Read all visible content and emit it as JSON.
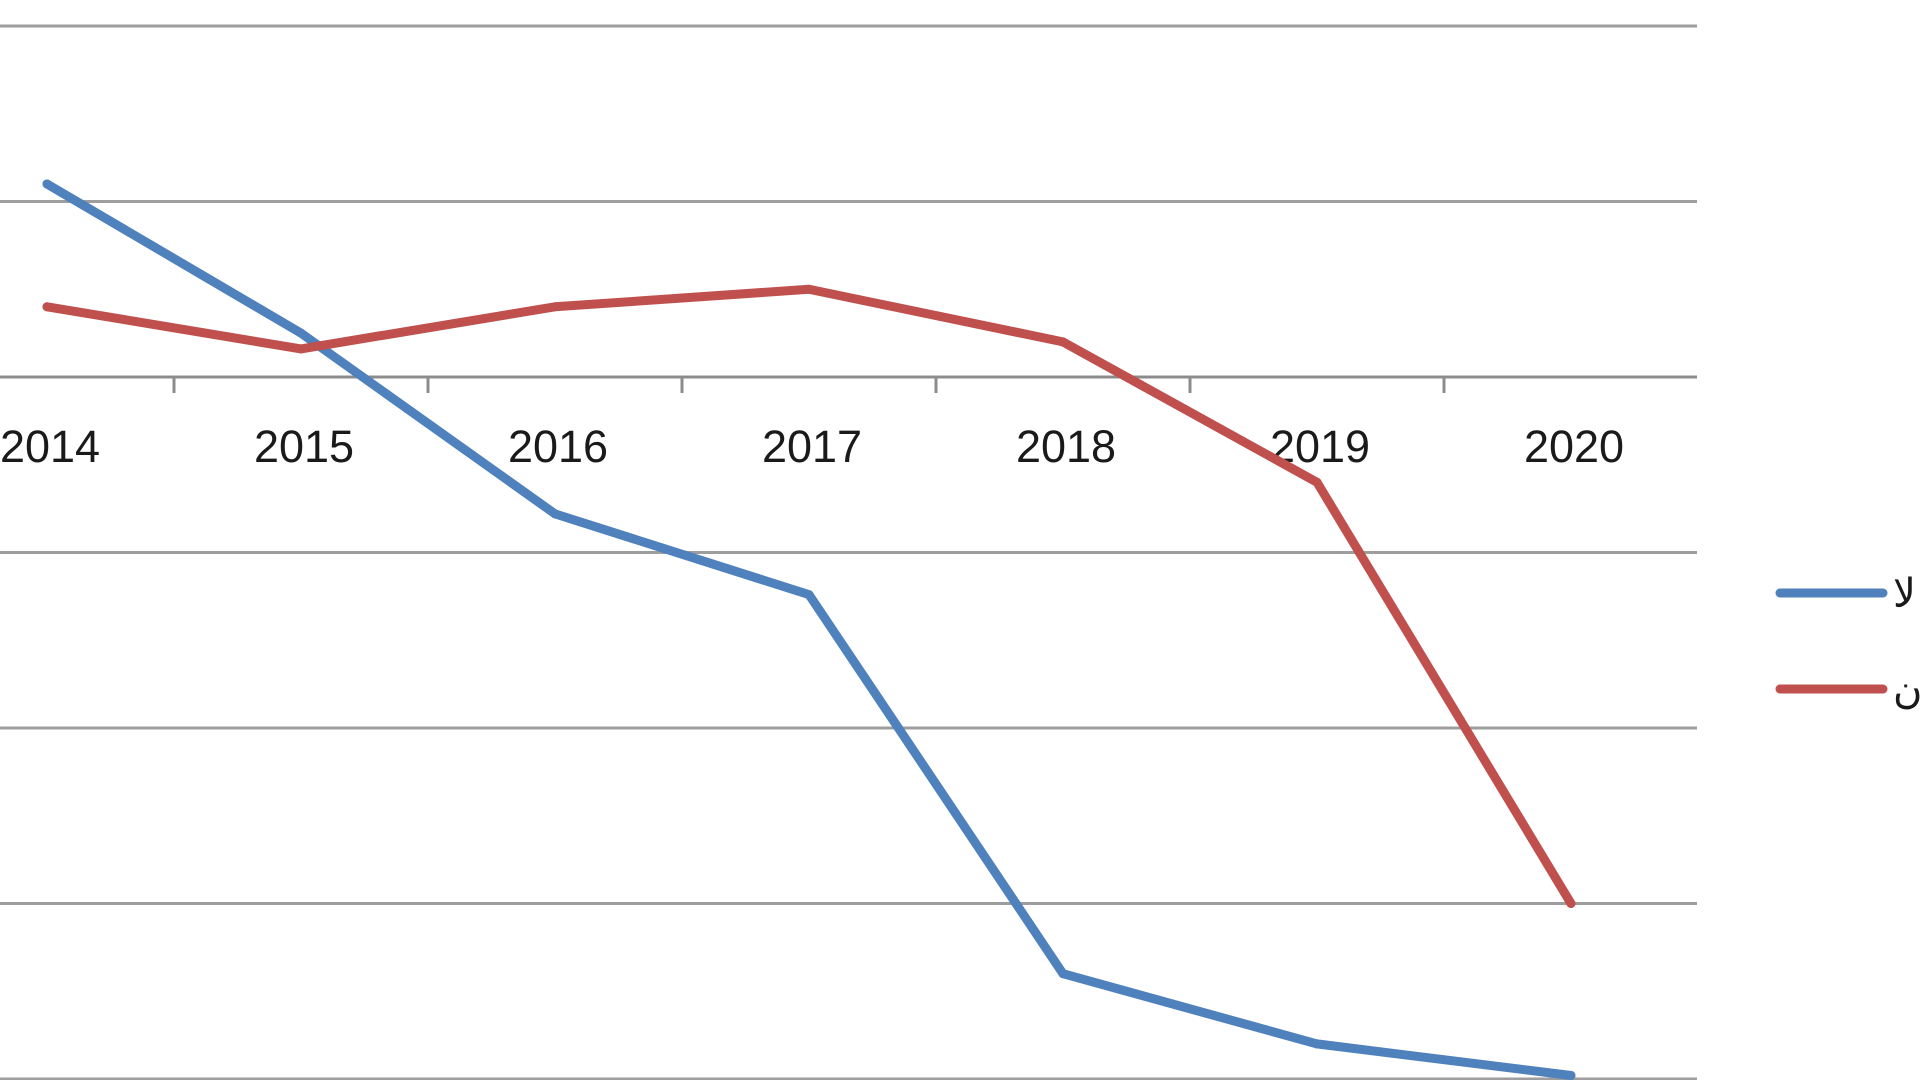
{
  "chart_data": {
    "type": "line",
    "title": "",
    "xlabel": "",
    "ylabel": "",
    "categories": [
      "2014",
      "2015",
      "2016",
      "2017",
      "2018",
      "2019",
      "2020"
    ],
    "ylim": [
      -4,
      2
    ],
    "grid": true,
    "legend_position": "right",
    "series": [
      {
        "name": "لا",
        "color": "#4f81bd",
        "values": [
          1.1,
          0.25,
          -0.78,
          -1.24,
          -3.4,
          -3.8,
          -3.98
        ]
      },
      {
        "name": "ن",
        "color": "#c0504d",
        "values": [
          0.4,
          0.16,
          0.4,
          0.5,
          0.2,
          -0.6,
          -3.0
        ]
      }
    ]
  }
}
